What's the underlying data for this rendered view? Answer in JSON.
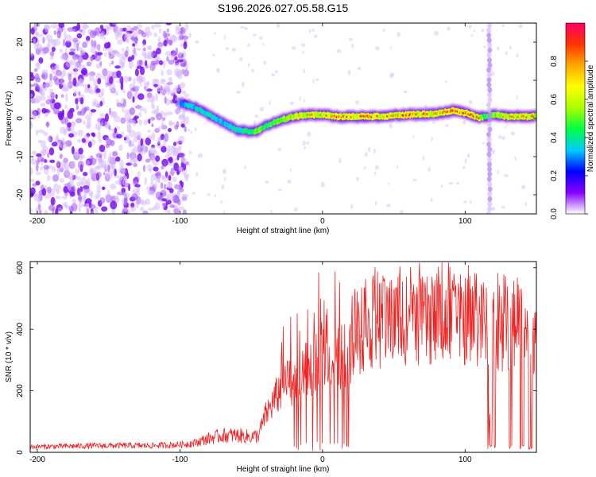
{
  "title": "S196.2026.027.05.58.G15",
  "colorbar": {
    "label": "Normalized spectral amplitude",
    "range": [
      0.0,
      1.0
    ],
    "ticks": [
      "0.0",
      "0.2",
      "0.4",
      "0.6",
      "0.8"
    ],
    "stops": [
      "#ffffff",
      "#8800ff",
      "#0000ff",
      "#00ccff",
      "#00ff44",
      "#aaff00",
      "#ffff00",
      "#ffaa00",
      "#ff3300",
      "#ff0066"
    ]
  },
  "chart_data": [
    {
      "type": "heatmap",
      "name": "spectrogram",
      "title": "S196.2026.027.05.58.G15",
      "xlabel": "Height of straight line (km)",
      "ylabel": "Frequency (Hz)",
      "xlim": [
        -205,
        150
      ],
      "ylim": [
        -25,
        25
      ],
      "x_ticks": [
        "-200",
        "-100",
        "0",
        "100"
      ],
      "y_ticks": [
        "20",
        "10",
        "0",
        "-10",
        "-20"
      ],
      "ridge": {
        "description": "dominant frequency ridge",
        "x": [
          -100,
          -90,
          -80,
          -70,
          -60,
          -50,
          -45,
          -40,
          -30,
          -20,
          -10,
          0,
          10,
          20,
          40,
          60,
          80,
          90,
          100,
          110,
          115,
          120,
          130,
          140,
          150
        ],
        "y": [
          4,
          3,
          1,
          -1,
          -3,
          -3.5,
          -3.2,
          -2,
          -0.5,
          0.5,
          1,
          1,
          0.5,
          0.5,
          0.5,
          1,
          1.2,
          2.0,
          1.5,
          0.2,
          0.5,
          1.0,
          0.5,
          0.5,
          0.5
        ],
        "amplitude": [
          0.45,
          0.5,
          0.55,
          0.5,
          0.55,
          0.6,
          0.75,
          0.6,
          0.7,
          0.8,
          0.85,
          0.85,
          0.9,
          0.9,
          0.85,
          0.9,
          0.9,
          0.95,
          0.9,
          0.85,
          0.6,
          0.75,
          0.8,
          0.85,
          0.8
        ]
      },
      "noise_region": {
        "x": [
          -205,
          -95
        ],
        "amplitude": "low (0.1-0.3)"
      },
      "interference_line_x": 117
    },
    {
      "type": "line",
      "name": "snr",
      "xlabel": "Height of straight line (km)",
      "ylabel": "SNR (10 * v/v)",
      "xlim": [
        -205,
        150
      ],
      "ylim": [
        0,
        620
      ],
      "x_ticks": [
        "-200",
        "-100",
        "0",
        "100"
      ],
      "y_ticks": [
        "600",
        "400",
        "200",
        "0"
      ],
      "color": "#ee2222",
      "series": [
        {
          "name": "SNR",
          "x": [
            -205,
            -180,
            -150,
            -120,
            -100,
            -90,
            -80,
            -70,
            -60,
            -50,
            -45,
            -40,
            -35,
            -30,
            -20,
            -10,
            0,
            10,
            20,
            25,
            30,
            40,
            50,
            60,
            70,
            80,
            90,
            100,
            110,
            115,
            118,
            120,
            125,
            130,
            140,
            150
          ],
          "y": [
            18,
            20,
            22,
            22,
            25,
            30,
            45,
            55,
            55,
            50,
            55,
            120,
            160,
            200,
            240,
            270,
            300,
            300,
            330,
            380,
            400,
            420,
            420,
            430,
            425,
            430,
            430,
            430,
            420,
            400,
            20,
            420,
            400,
            410,
            380,
            350
          ]
        }
      ],
      "features": {
        "dropouts_x": [
          117,
          120,
          132,
          140,
          146
        ]
      }
    }
  ]
}
